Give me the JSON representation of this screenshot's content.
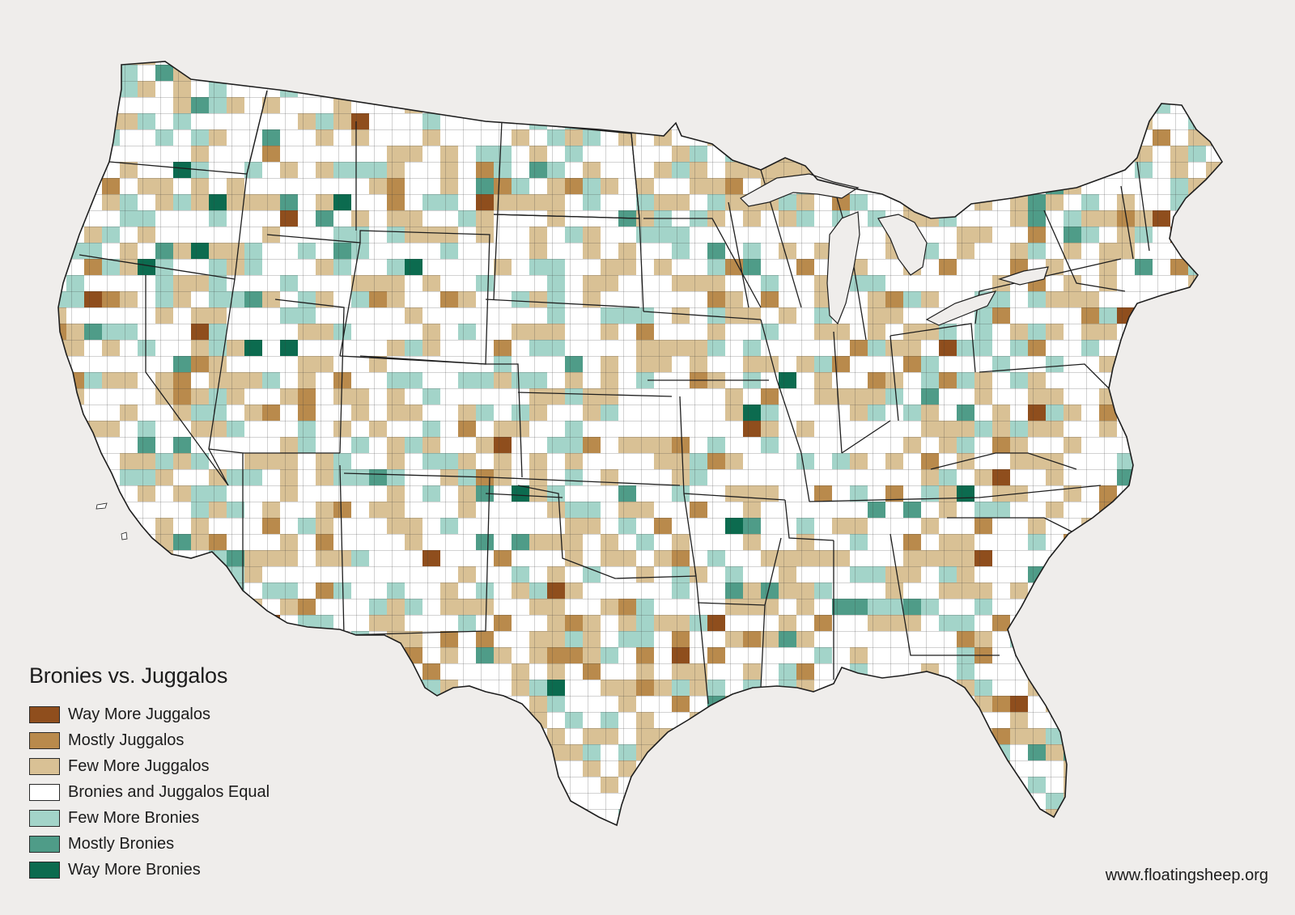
{
  "map": {
    "title": "Bronies vs. Juggalos",
    "source_url": "www.floatingsheep.org",
    "outline_color": "#222222",
    "background": "#efedeb"
  },
  "legend": {
    "items": [
      {
        "label": "Way More Juggalos",
        "color": "#8f4e1d"
      },
      {
        "label": "Mostly Juggalos",
        "color": "#b98a4c"
      },
      {
        "label": "Few More Juggalos",
        "color": "#d9c195"
      },
      {
        "label": "Bronies and Juggalos Equal",
        "color": "#ffffff"
      },
      {
        "label": "Few More Bronies",
        "color": "#a3d4c9"
      },
      {
        "label": "Mostly Bronies",
        "color": "#4f9c88"
      },
      {
        "label": "Way More Bronies",
        "color": "#0c6b4f"
      }
    ]
  }
}
